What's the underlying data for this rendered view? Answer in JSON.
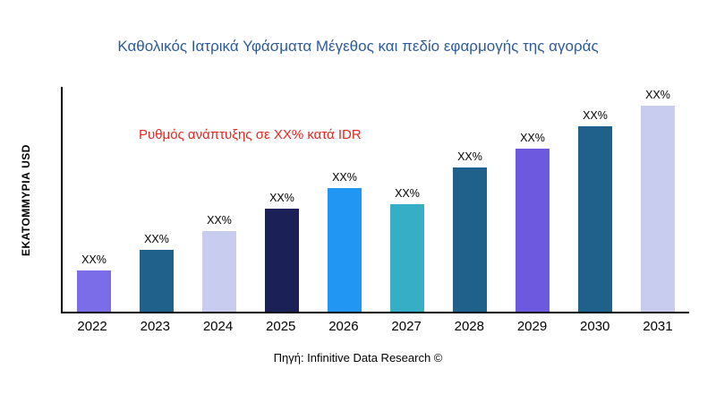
{
  "title": "Καθολικός Ιατρικά Υφάσματα Μέγεθος και πεδίο εφαρμογής της αγοράς",
  "annotation": "Ρυθμός ανάπτυξης σε XX% κατά IDR",
  "y_axis_label": "ΕΚΑΤΟΜΜΥΡΙΑ USD",
  "source": "Πηγή: Infinitive Data Research ©",
  "colors": {
    "title": "#2e5b97",
    "annotation": "#e52620",
    "axis": "#000000"
  },
  "chart_data": {
    "type": "bar",
    "title": "Καθολικός Ιατρικά Υφάσματα Μέγεθος και πεδίο εφαρμογής της αγοράς",
    "xlabel": "",
    "ylabel": "ΕΚΑΤΟΜΜΥΡΙΑ USD",
    "categories": [
      "2022",
      "2023",
      "2024",
      "2025",
      "2026",
      "2027",
      "2028",
      "2029",
      "2030",
      "2031"
    ],
    "values": [
      20,
      30,
      39,
      50,
      60,
      52,
      70,
      79,
      90,
      100
    ],
    "value_unit": "relative height (actual figures masked as XX% in source)",
    "bar_labels": [
      "XX%",
      "XX%",
      "XX%",
      "XX%",
      "XX%",
      "XX%",
      "XX%",
      "XX%",
      "XX%",
      "XX%"
    ],
    "bar_colors": [
      "#7b6ce8",
      "#20618b",
      "#c8cdf0",
      "#1b2057",
      "#2196f3",
      "#35aec6",
      "#20618b",
      "#6d58e0",
      "#20618b",
      "#c8cdf0"
    ],
    "grid": false,
    "legend": "none",
    "annotations": [
      "Ρυθμός ανάπτυξης σε XX% κατά IDR"
    ]
  }
}
